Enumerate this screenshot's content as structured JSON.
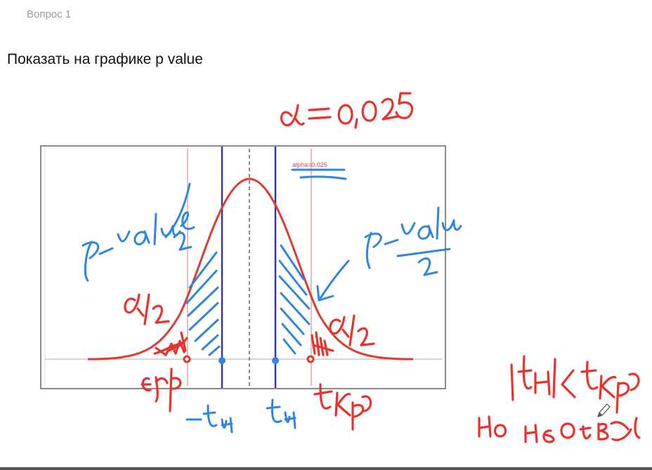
{
  "question": {
    "label": "Вопрос 1",
    "prompt": "Показать на графике p value"
  },
  "figure": {
    "legend_text": "alpha=0.025",
    "colors": {
      "curve": "#e03a30",
      "critical_lines": "#e9a0a0",
      "t_lines": "#3030c0",
      "annotation_red": "#e8322b",
      "annotation_blue": "#2f86e0",
      "frame": "#8a8a8a"
    }
  }
}
